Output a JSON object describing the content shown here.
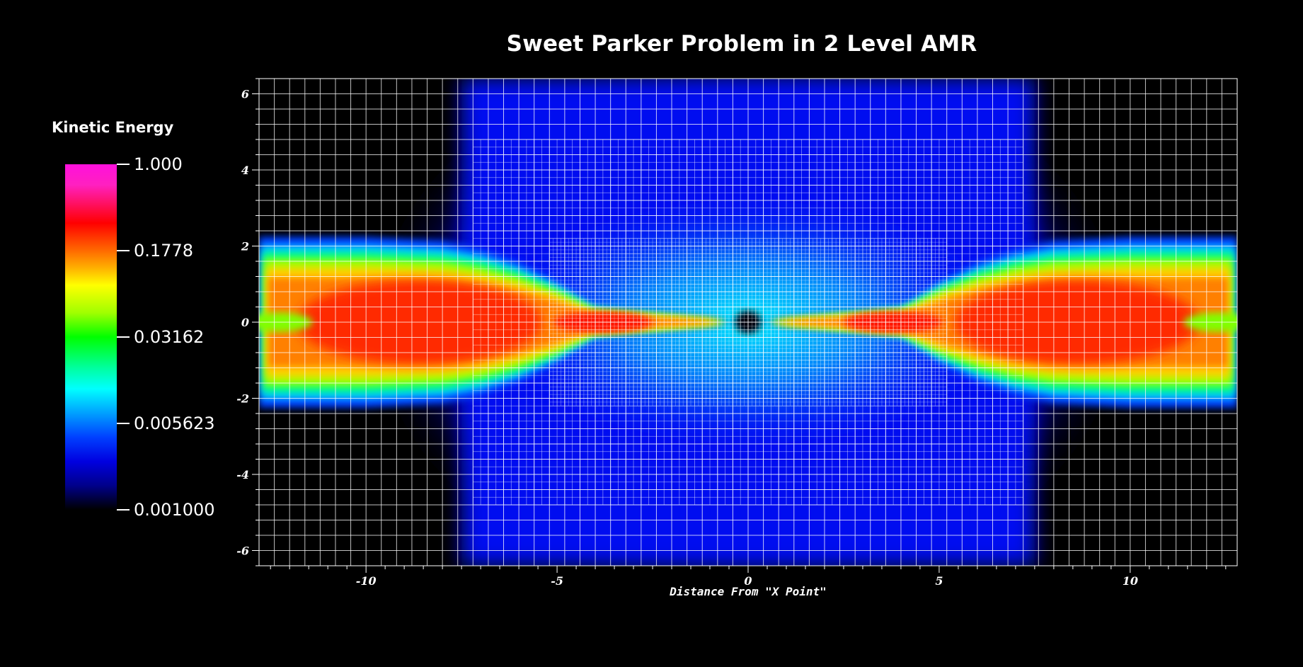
{
  "chart_data": {
    "type": "heatmap",
    "title": "Sweet Parker Problem in 2 Level AMR",
    "xlabel": "Distance From \"X Point\"",
    "ylabel": "",
    "xlim": [
      -12.8,
      12.8
    ],
    "ylim": [
      -6.4,
      6.4
    ],
    "xticks": [
      "-10",
      "-5",
      "0",
      "5",
      "10"
    ],
    "yticks": [
      "6",
      "4",
      "2",
      "0",
      "-2",
      "-4",
      "-6"
    ],
    "colorbar": {
      "title": "Kinetic Energy",
      "scale": "log",
      "range": [
        0.001,
        1.0
      ],
      "tick_labels": [
        "1.000",
        "0.1778",
        "0.03162",
        "0.005623",
        "0.001000"
      ],
      "tick_values": [
        1.0,
        0.1778,
        0.03162,
        0.005623,
        0.001
      ]
    },
    "amr_levels": [
      {
        "name": "level0",
        "x": [
          -12.8,
          12.8
        ],
        "y": [
          -6.4,
          6.4
        ],
        "cell": 0.4
      },
      {
        "name": "level1",
        "x": [
          -7.2,
          7.2
        ],
        "y": [
          -4.8,
          4.8
        ],
        "cell": 0.2
      },
      {
        "name": "level2",
        "x": [
          -5.2,
          5.2
        ],
        "y": [
          -2.2,
          2.2
        ],
        "cell": 0.1
      }
    ],
    "grid": true,
    "legend_placement": "left"
  }
}
